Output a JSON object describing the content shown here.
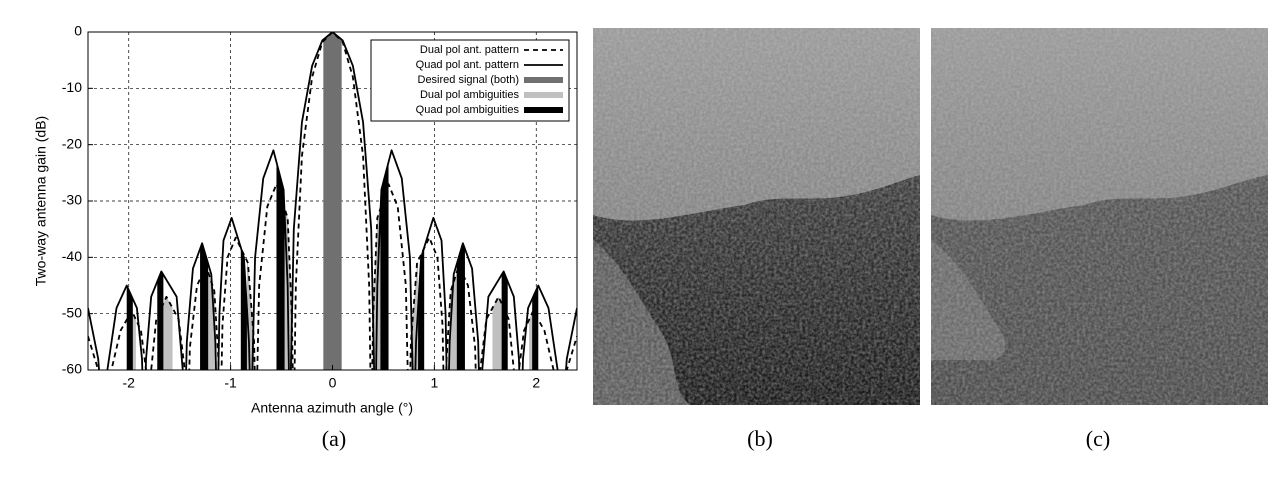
{
  "chart_data": {
    "type": "line",
    "xlabel": "Antenna azimuth angle (°)",
    "ylabel": "Two-way antenna gain (dB)",
    "xlim": [
      -2.4,
      2.4
    ],
    "ylim": [
      -60,
      0
    ],
    "xticks": [
      -2,
      -1,
      0,
      1,
      2
    ],
    "yticks": [
      0,
      -10,
      -20,
      -30,
      -40,
      -50,
      -60
    ],
    "grid": true,
    "legend": "upper right",
    "series": [
      {
        "name": "Dual pol ant. pattern",
        "color": "#000000",
        "dashed": true,
        "x": [
          -2.4,
          -2.3,
          -2.2,
          -2.17,
          -2.08,
          -1.97,
          -1.88,
          -1.83,
          -1.8,
          -1.78,
          -1.73,
          -1.63,
          -1.51,
          -1.45,
          -1.42,
          -1.4,
          -1.33,
          -1.24,
          -1.16,
          -1.12,
          -1.1,
          -1.08,
          -1.03,
          -0.95,
          -0.83,
          -0.77,
          -0.75,
          -0.72,
          -0.64,
          -0.55,
          -0.44,
          -0.4,
          -0.38,
          -0.36,
          -0.3,
          -0.2,
          -0.1,
          0,
          0.1,
          0.2,
          0.3,
          0.36,
          0.38,
          0.4,
          0.44,
          0.55,
          0.64,
          0.72,
          0.75,
          0.77,
          0.83,
          0.95,
          1.03,
          1.08,
          1.1,
          1.12,
          1.16,
          1.24,
          1.33,
          1.4,
          1.42,
          1.45,
          1.51,
          1.63,
          1.73,
          1.78,
          1.8,
          1.83,
          1.88,
          1.97,
          2.08,
          2.17,
          2.2,
          2.3,
          2.4
        ],
        "values": [
          -54,
          -60,
          -70,
          -60,
          -53,
          -49.5,
          -53,
          -60,
          -70,
          -60,
          -51,
          -47,
          -51,
          -60,
          -70,
          -56,
          -45,
          -41.5,
          -46,
          -58,
          -70,
          -52,
          -40,
          -36.5,
          -41,
          -55,
          -70,
          -45,
          -31,
          -27,
          -33,
          -50,
          -70,
          -45,
          -22,
          -8,
          -1.8,
          0,
          -1.8,
          -8,
          -22,
          -45,
          -70,
          -50,
          -33,
          -27,
          -31,
          -45,
          -70,
          -55,
          -41,
          -36.5,
          -40,
          -52,
          -70,
          -58,
          -46,
          -41.5,
          -45,
          -56,
          -70,
          -60,
          -51,
          -47,
          -51,
          -60,
          -70,
          -60,
          -53,
          -49.5,
          -53,
          -60,
          -70,
          -60,
          -54
        ]
      },
      {
        "name": "Quad pol ant. pattern",
        "color": "#000000",
        "dashed": false,
        "x": [
          -2.4,
          -2.3,
          -2.25,
          -2.21,
          -2.12,
          -2.02,
          -1.92,
          -1.87,
          -1.85,
          -1.83,
          -1.78,
          -1.68,
          -1.53,
          -1.47,
          -1.45,
          -1.43,
          -1.37,
          -1.28,
          -1.19,
          -1.15,
          -1.13,
          -1.11,
          -1.07,
          -0.99,
          -0.87,
          -0.82,
          -0.8,
          -0.76,
          -0.68,
          -0.58,
          -0.48,
          -0.44,
          -0.42,
          -0.38,
          -0.3,
          -0.2,
          -0.1,
          0,
          0.1,
          0.2,
          0.3,
          0.38,
          0.42,
          0.44,
          0.48,
          0.58,
          0.68,
          0.76,
          0.8,
          0.82,
          0.87,
          0.99,
          1.07,
          1.11,
          1.13,
          1.15,
          1.19,
          1.28,
          1.37,
          1.43,
          1.45,
          1.47,
          1.53,
          1.68,
          1.78,
          1.83,
          1.85,
          1.87,
          1.92,
          2.02,
          2.12,
          2.21,
          2.25,
          2.3,
          2.4
        ],
        "values": [
          -49,
          -58,
          -70,
          -60,
          -49,
          -45,
          -49,
          -58,
          -70,
          -58,
          -47,
          -42.5,
          -47,
          -60,
          -70,
          -55,
          -42,
          -37.5,
          -43,
          -55,
          -70,
          -50,
          -37,
          -33,
          -40,
          -55,
          -70,
          -40,
          -26,
          -21,
          -28,
          -45,
          -70,
          -35,
          -16,
          -6,
          -1.5,
          0,
          -1.5,
          -6,
          -16,
          -35,
          -70,
          -45,
          -28,
          -21,
          -26,
          -40,
          -70,
          -55,
          -40,
          -33,
          -37,
          -50,
          -70,
          -55,
          -43,
          -37.5,
          -42,
          -55,
          -70,
          -60,
          -47,
          -42.5,
          -47,
          -58,
          -70,
          -58,
          -49,
          -45,
          -49,
          -60,
          -70,
          -58,
          -49
        ]
      }
    ],
    "bands": [
      {
        "name": "Desired signal (both)",
        "color": "#707070",
        "ranges": [
          [
            -0.09,
            0.09
          ]
        ]
      },
      {
        "name": "Dual pol ambiguities",
        "color": "#c0c0c0",
        "ranges": [
          [
            -2.0,
            -1.93
          ],
          [
            -1.66,
            -1.57
          ],
          [
            -1.22,
            -1.15
          ],
          [
            -0.84,
            -0.75
          ],
          [
            -0.47,
            -0.37
          ],
          [
            0.37,
            0.47
          ],
          [
            0.75,
            0.84
          ],
          [
            1.15,
            1.22
          ],
          [
            1.57,
            1.66
          ],
          [
            1.93,
            2.0
          ]
        ]
      },
      {
        "name": "Quad pol ambiguities",
        "color": "#000000",
        "ranges": [
          [
            -2.02,
            -1.96
          ],
          [
            -1.72,
            -1.66
          ],
          [
            -1.3,
            -1.22
          ],
          [
            -0.9,
            -0.84
          ],
          [
            -0.55,
            -0.47
          ],
          [
            0.47,
            0.55
          ],
          [
            0.84,
            0.9
          ],
          [
            1.22,
            1.3
          ],
          [
            1.66,
            1.72
          ],
          [
            1.96,
            2.02
          ]
        ]
      }
    ]
  },
  "captions": [
    "(a)",
    "(b)",
    "(c)"
  ]
}
